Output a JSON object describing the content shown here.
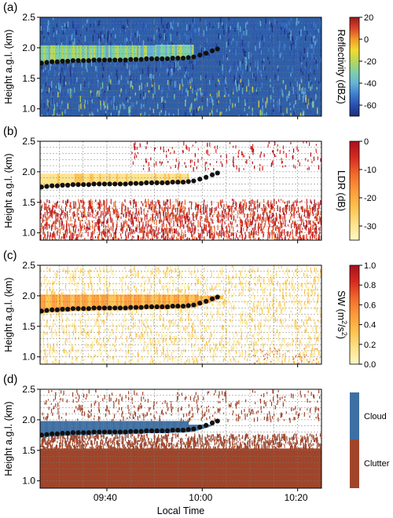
{
  "figure": {
    "xlabel": "Local Time",
    "x_ticks": [
      "09:40",
      "10:00",
      "10:20"
    ],
    "x_tick_minutes": [
      40,
      60,
      80
    ],
    "x_range_minutes": [
      26,
      85
    ],
    "ylabel": "Height a.g.l. (km)"
  },
  "chart_data": [
    {
      "type": "heatmap",
      "panel_label": "(a)",
      "ylabel": "Height a.g.l. (km)",
      "xlabel": "Local Time",
      "ylim": [
        0.88,
        2.5
      ],
      "y_ticks": [
        "1.0",
        "1.5",
        "2.0",
        "2.5"
      ],
      "colorbar_label": "Reflectivity (dBZ)",
      "colorbar_range": [
        -70,
        20
      ],
      "colorbar_ticks": [
        "20",
        "0",
        "-20",
        "-40",
        "-60"
      ],
      "colormap": "jet",
      "grid": true
    },
    {
      "type": "heatmap",
      "panel_label": "(b)",
      "ylabel": "Height a.g.l. (km)",
      "xlabel": "Local Time",
      "ylim": [
        0.88,
        2.5
      ],
      "y_ticks": [
        "1.0",
        "1.5",
        "2.0",
        "2.5"
      ],
      "colorbar_label": "LDR (dB)",
      "colorbar_range": [
        -35,
        0
      ],
      "colorbar_ticks": [
        "0",
        "-10",
        "-20",
        "-30"
      ],
      "colormap": "YlOrRd",
      "grid": true
    },
    {
      "type": "heatmap",
      "panel_label": "(c)",
      "ylabel": "Height a.g.l. (km)",
      "xlabel": "Local Time",
      "ylim": [
        0.88,
        2.5
      ],
      "y_ticks": [
        "1.0",
        "1.5",
        "2.0",
        "2.5"
      ],
      "colorbar_label": "SW (m²/s²)",
      "colorbar_label_main": "SW (m",
      "colorbar_label_sup1": "2",
      "colorbar_label_mid": "/s",
      "colorbar_label_sup2": "2",
      "colorbar_label_end": ")",
      "colorbar_range": [
        0,
        1
      ],
      "colorbar_ticks": [
        "1.0",
        "0.8",
        "0.6",
        "0.4",
        "0.2",
        "0.0"
      ],
      "colormap": "YlOrRd",
      "grid": true
    },
    {
      "type": "heatmap",
      "panel_label": "(d)",
      "ylabel": "Height a.g.l. (km)",
      "xlabel": "Local Time",
      "ylim": [
        0.88,
        2.5
      ],
      "y_ticks": [
        "1.0",
        "1.5",
        "2.0",
        "2.5"
      ],
      "categories": [
        "Cloud",
        "Clutter"
      ],
      "category_colors": [
        "#3e6fa3",
        "#a0452a"
      ],
      "grid": true
    }
  ],
  "cloud_base_points": {
    "x_minutes": [
      26.3,
      27.4,
      28.5,
      29.6,
      30.7,
      31.8,
      32.9,
      34.0,
      35.1,
      36.2,
      37.3,
      38.4,
      39.5,
      40.6,
      41.7,
      42.8,
      43.9,
      45.0,
      46.1,
      47.2,
      48.3,
      49.4,
      50.5,
      51.6,
      52.7,
      53.8,
      54.9,
      56.0,
      57.1,
      58.2,
      59.5,
      60.8,
      62.1,
      63.2
    ],
    "y_km": [
      1.75,
      1.76,
      1.77,
      1.77,
      1.78,
      1.78,
      1.79,
      1.79,
      1.79,
      1.79,
      1.8,
      1.8,
      1.8,
      1.8,
      1.8,
      1.8,
      1.8,
      1.81,
      1.81,
      1.81,
      1.82,
      1.82,
      1.82,
      1.82,
      1.82,
      1.83,
      1.83,
      1.83,
      1.84,
      1.85,
      1.88,
      1.91,
      1.95,
      1.98
    ]
  },
  "colors": {
    "jet": [
      "#1e2c7a",
      "#2a4fb0",
      "#3f7ed0",
      "#66b4d8",
      "#7fd0a8",
      "#b8d75a",
      "#f2dc2e",
      "#f39a2a",
      "#d9442a",
      "#9a1b1d"
    ],
    "ylorrd": [
      "#fff9c4",
      "#fee28a",
      "#fec24d",
      "#fd9a3a",
      "#f26a2a",
      "#d72b20",
      "#a8101e"
    ],
    "jet_bg": "#2f5fa9",
    "cloud": "#3e6fa3",
    "clutter": "#a0452a",
    "marker": "#111111"
  }
}
